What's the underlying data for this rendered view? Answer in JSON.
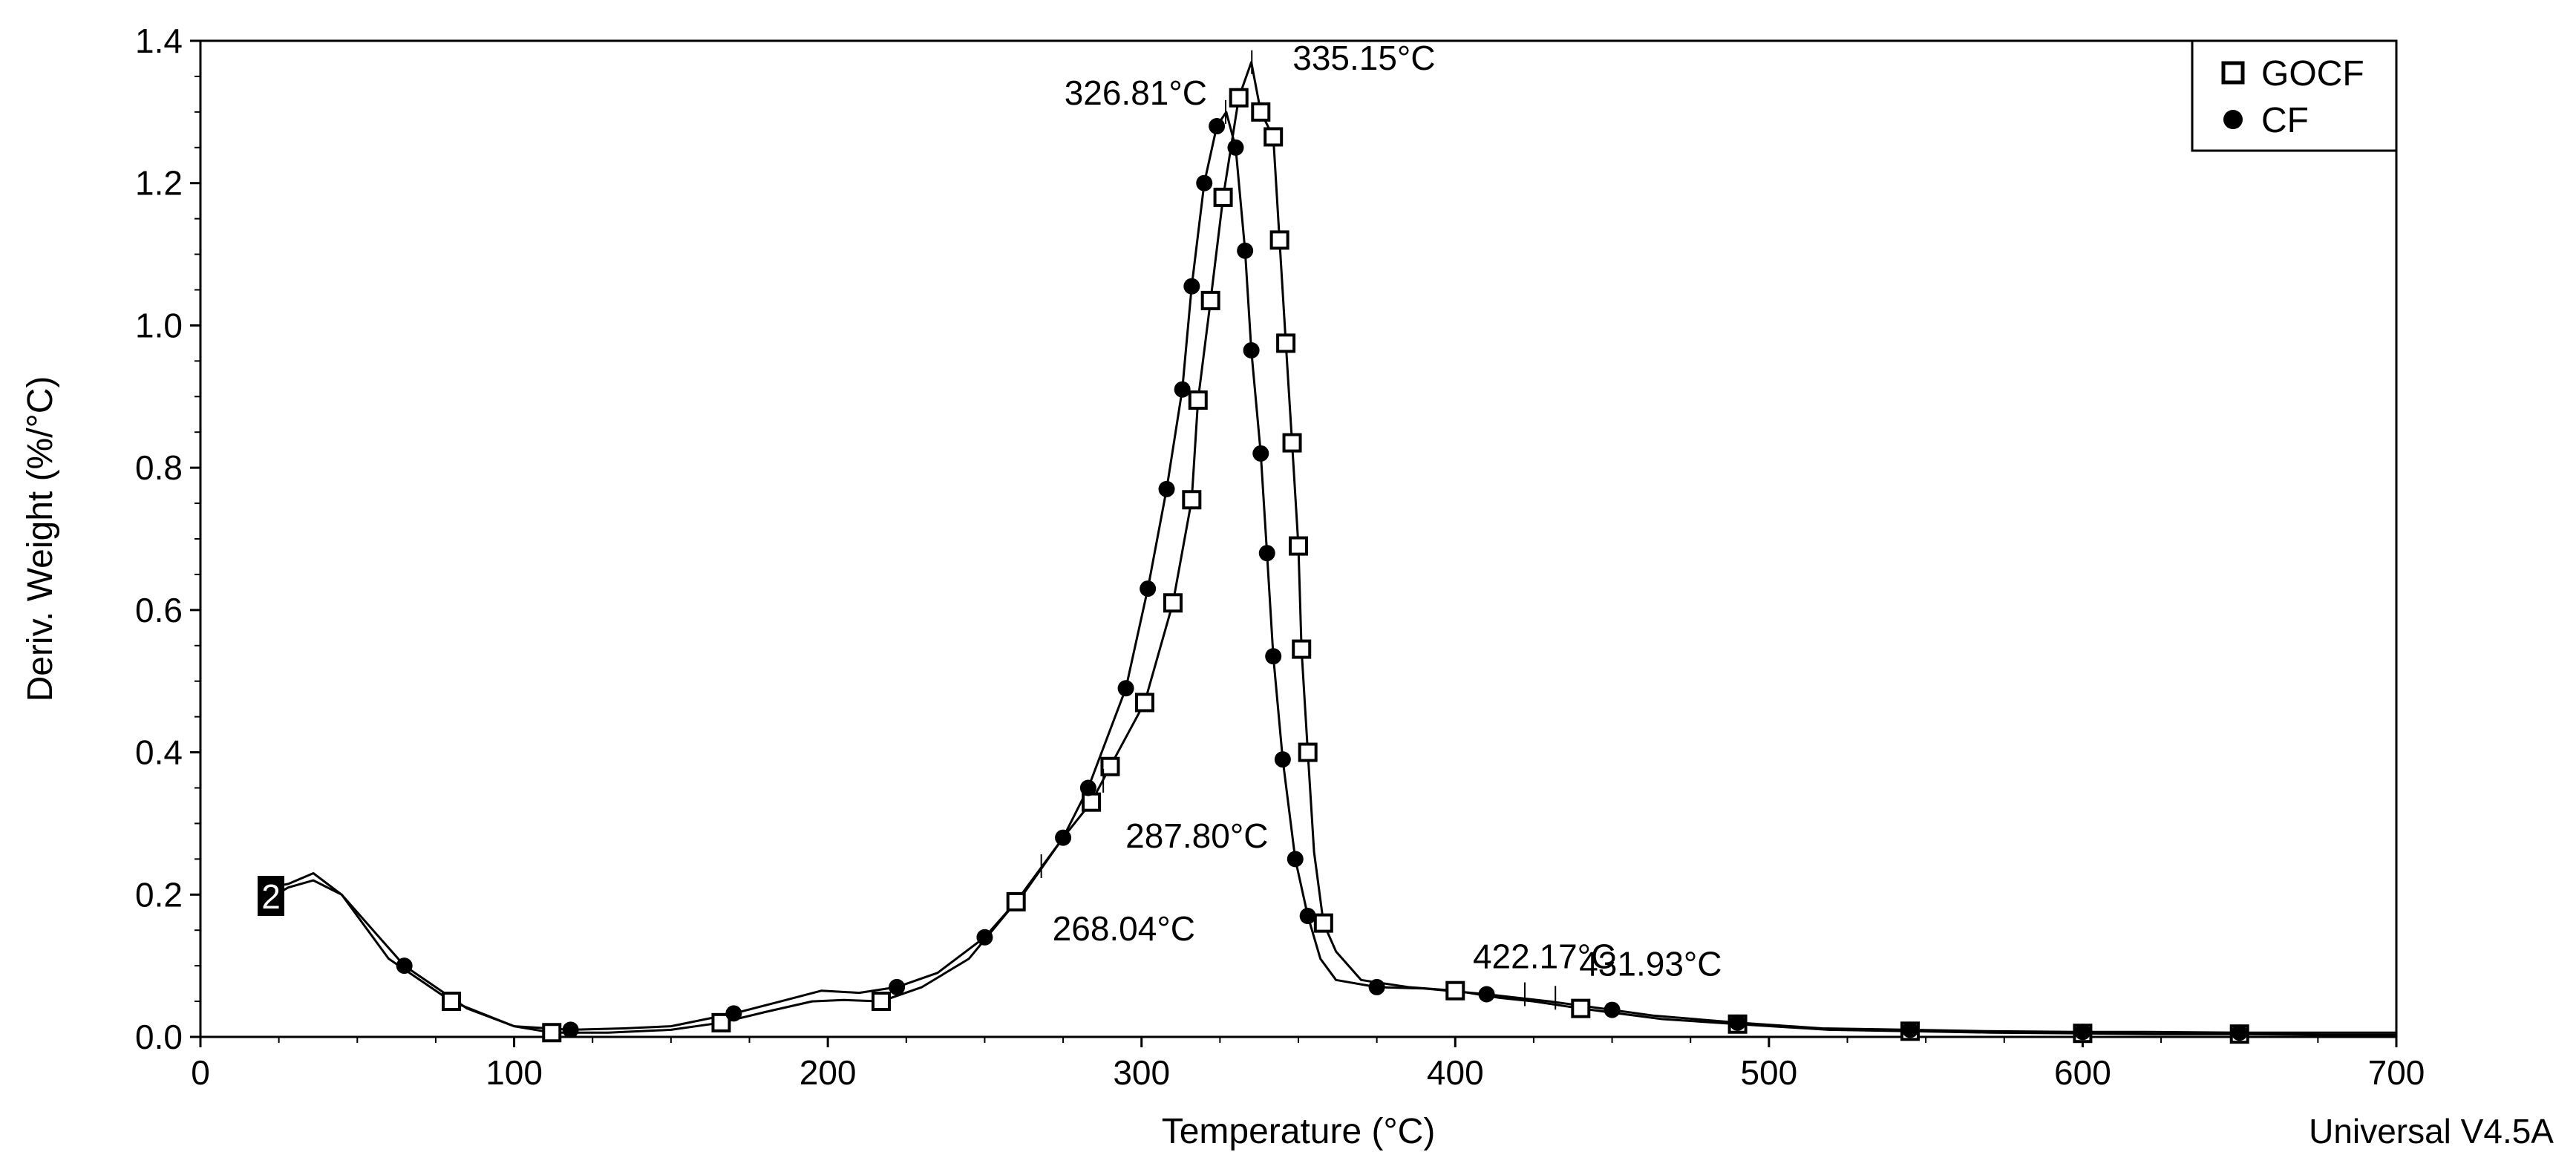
{
  "chart_data": {
    "type": "line",
    "title": "",
    "xlabel": "Temperature (°C)",
    "ylabel": "Deriv. Weight (%/°C)",
    "xlim": [
      0,
      700
    ],
    "ylim": [
      0,
      1.4
    ],
    "x_ticks": [
      0,
      100,
      200,
      300,
      400,
      500,
      600,
      700
    ],
    "y_ticks": [
      0.0,
      0.2,
      0.4,
      0.6,
      0.8,
      1.0,
      1.2,
      1.4
    ],
    "x_tick_labels": [
      "0",
      "100",
      "200",
      "300",
      "400",
      "500",
      "600",
      "700"
    ],
    "y_tick_labels": [
      "0.0",
      "0.2",
      "0.4",
      "0.6",
      "0.8",
      "1.0",
      "1.2",
      "1.4"
    ],
    "grid": false,
    "legend_position": "top-right",
    "series": [
      {
        "name": "GOCF",
        "marker": "open-square",
        "x": [
          22,
          28,
          36,
          45,
          60,
          80,
          100,
          112,
          130,
          150,
          166,
          180,
          195,
          205,
          217,
          230,
          245,
          260,
          275,
          284,
          290,
          301,
          310,
          316,
          318,
          322,
          326,
          331,
          335,
          338,
          342,
          344,
          346,
          348,
          350,
          351,
          353,
          355,
          358,
          362,
          370,
          385,
          400,
          414,
          425,
          440,
          466,
          490,
          519,
          545,
          571,
          600,
          623,
          650,
          676,
          700
        ],
        "y": [
          0.195,
          0.21,
          0.22,
          0.2,
          0.11,
          0.05,
          0.015,
          0.006,
          0.006,
          0.01,
          0.02,
          0.035,
          0.05,
          0.052,
          0.05,
          0.07,
          0.11,
          0.19,
          0.28,
          0.33,
          0.38,
          0.47,
          0.61,
          0.755,
          0.895,
          1.035,
          1.18,
          1.32,
          1.37,
          1.3,
          1.265,
          1.12,
          0.975,
          0.835,
          0.69,
          0.545,
          0.4,
          0.26,
          0.16,
          0.12,
          0.08,
          0.07,
          0.065,
          0.055,
          0.05,
          0.04,
          0.025,
          0.018,
          0.01,
          0.008,
          0.006,
          0.005,
          0.004,
          0.004,
          0.003,
          0.003
        ]
      },
      {
        "name": "CF",
        "marker": "filled-circle",
        "x": [
          22,
          28,
          36,
          45,
          65,
          85,
          100,
          118,
          135,
          150,
          170,
          185,
          198,
          210,
          222,
          235,
          250,
          263,
          275,
          283,
          295,
          302,
          308,
          313,
          316,
          320,
          324,
          327,
          330,
          333,
          335,
          338,
          340,
          342,
          345,
          349,
          353,
          357,
          362,
          375,
          390,
          410,
          430,
          450,
          463,
          490,
          517,
          545,
          569,
          600,
          620,
          650,
          672,
          700
        ],
        "y": [
          0.21,
          0.215,
          0.23,
          0.2,
          0.1,
          0.04,
          0.015,
          0.01,
          0.012,
          0.015,
          0.033,
          0.05,
          0.065,
          0.062,
          0.07,
          0.09,
          0.14,
          0.205,
          0.28,
          0.35,
          0.49,
          0.63,
          0.77,
          0.91,
          1.055,
          1.2,
          1.28,
          1.3,
          1.25,
          1.105,
          0.965,
          0.82,
          0.68,
          0.535,
          0.39,
          0.25,
          0.17,
          0.11,
          0.08,
          0.07,
          0.068,
          0.06,
          0.05,
          0.038,
          0.03,
          0.02,
          0.012,
          0.01,
          0.008,
          0.007,
          0.007,
          0.006,
          0.006,
          0.006
        ]
      }
    ],
    "annotations": [
      {
        "text": "326.81°C",
        "x": 326.81,
        "y": 1.3
      },
      {
        "text": "335.15°C",
        "x": 335.15,
        "y": 1.37
      },
      {
        "text": "287.80°C",
        "x": 287.8,
        "y": 0.36
      },
      {
        "text": "268.04°C",
        "x": 268.04,
        "y": 0.24
      },
      {
        "text": "422.17°C",
        "x": 422.17,
        "y": 0.06
      },
      {
        "text": "431.93°C",
        "x": 431.93,
        "y": 0.055
      }
    ],
    "curve_badge": "2",
    "footer": "Universal V4.5A"
  }
}
